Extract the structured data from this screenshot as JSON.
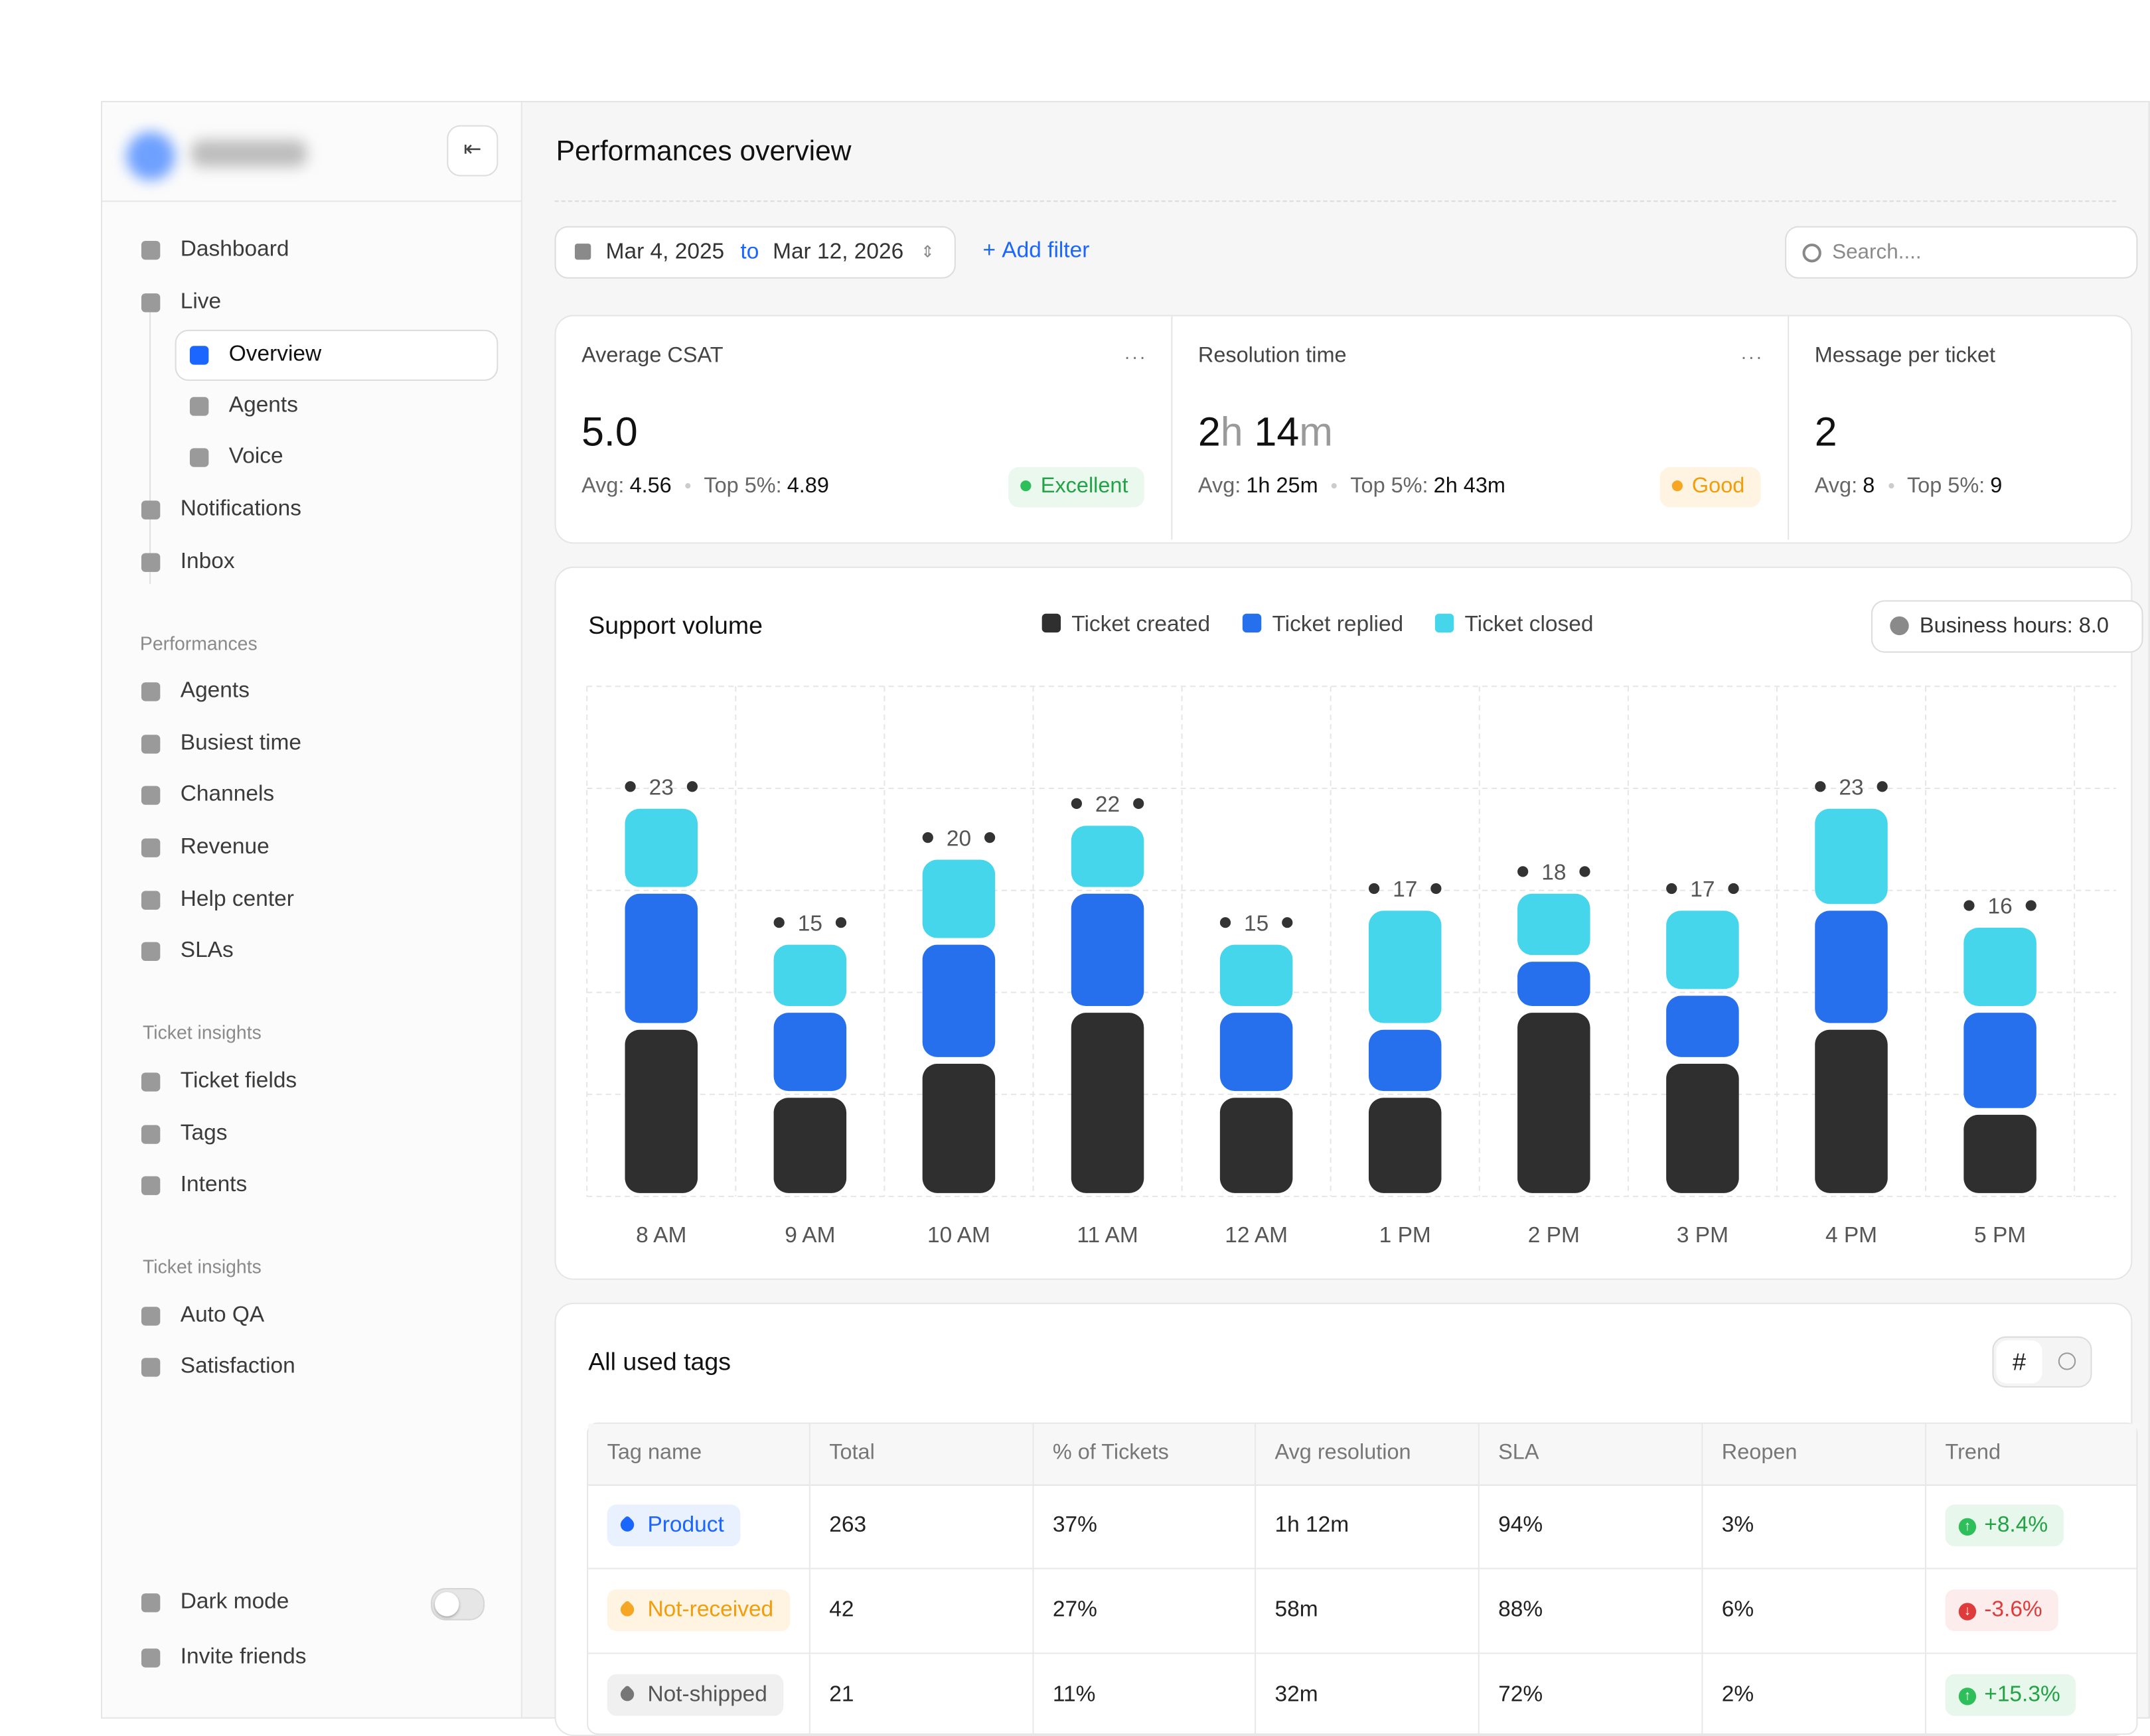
{
  "header": {
    "title": "Performances overview"
  },
  "filters": {
    "date_from": "Mar 4, 2025",
    "date_to_word": "to",
    "date_to": "Mar 12, 2026",
    "add_filter": "Add filter",
    "search_placeholder": "Search...."
  },
  "sidebar": {
    "main": [
      "Dashboard",
      "Live",
      "Notifications",
      "Inbox"
    ],
    "live_children": [
      "Overview",
      "Agents",
      "Voice"
    ],
    "sections": [
      {
        "label": "Performances",
        "items": [
          "Agents",
          "Busiest time",
          "Channels",
          "Revenue",
          "Help center",
          "SLAs"
        ]
      },
      {
        "label": "Ticket insights",
        "items": [
          "Ticket fields",
          "Tags",
          "Intents"
        ]
      },
      {
        "label": "Ticket insights",
        "items": [
          "Auto QA",
          "Satisfaction"
        ]
      }
    ],
    "footer": [
      "Dark mode",
      "Invite friends"
    ]
  },
  "kpis": [
    {
      "title": "Average CSAT",
      "value": [
        "5.0"
      ],
      "avg_label": "Avg:",
      "avg": "4.56",
      "top_label": "Top 5%:",
      "top": "4.89",
      "badge": "Excellent",
      "badge_tone": "green"
    },
    {
      "title": "Resolution time",
      "value": [
        "2",
        "h",
        " 14",
        "m"
      ],
      "avg_label": "Avg:",
      "avg": "1h 25m",
      "top_label": "Top 5%:",
      "top": "2h 43m",
      "badge": "Good",
      "badge_tone": "orange"
    },
    {
      "title": "Message per ticket",
      "value": [
        "2"
      ],
      "avg_label": "Avg:",
      "avg": "8",
      "top_label": "Top 5%:",
      "top": "9"
    }
  ],
  "chart_data": {
    "type": "stacked-bar",
    "title": "Support volume",
    "business_hours": "Business hours: 8.0",
    "categories": [
      "8 AM",
      "9 AM",
      "10 AM",
      "11 AM",
      "12 AM",
      "1 PM",
      "2 PM",
      "3 PM",
      "4 PM",
      "5 PM"
    ],
    "series": [
      {
        "name": "Ticket created",
        "color": "#2f2f2f",
        "values": [
          10,
          6,
          8,
          11,
          6,
          6,
          11,
          8,
          10,
          5
        ]
      },
      {
        "name": "Ticket replied",
        "color": "#2670ee",
        "values": [
          8,
          5,
          7,
          7,
          5,
          4,
          3,
          4,
          7,
          6
        ]
      },
      {
        "name": "Ticket closed",
        "color": "#45d6ec",
        "values": [
          5,
          4,
          5,
          4,
          4,
          7,
          4,
          5,
          6,
          5
        ]
      }
    ],
    "totals": [
      23,
      15,
      20,
      22,
      15,
      17,
      18,
      17,
      23,
      16
    ],
    "ylim": [
      0,
      30
    ],
    "yticks": [
      0,
      6,
      12,
      18,
      24,
      30
    ],
    "grid": true
  },
  "table": {
    "title": "All used tags",
    "columns": [
      "Tag name",
      "Total",
      "% of Tickets",
      "Avg resolution",
      "SLA",
      "Reopen",
      "Trend"
    ],
    "rows": [
      [
        "Product",
        "263",
        "37%",
        "1h 12m",
        "94%",
        "3%",
        "+8.4%"
      ],
      [
        "Not-received",
        "42",
        "27%",
        "58m",
        "88%",
        "6%",
        "-3.6%"
      ],
      [
        "Not-shipped",
        "21",
        "11%",
        "32m",
        "72%",
        "2%",
        "+15.3%"
      ]
    ],
    "tag_tones": [
      "blue",
      "orange",
      "gray"
    ],
    "trend_tones": [
      "up",
      "down",
      "up"
    ]
  }
}
